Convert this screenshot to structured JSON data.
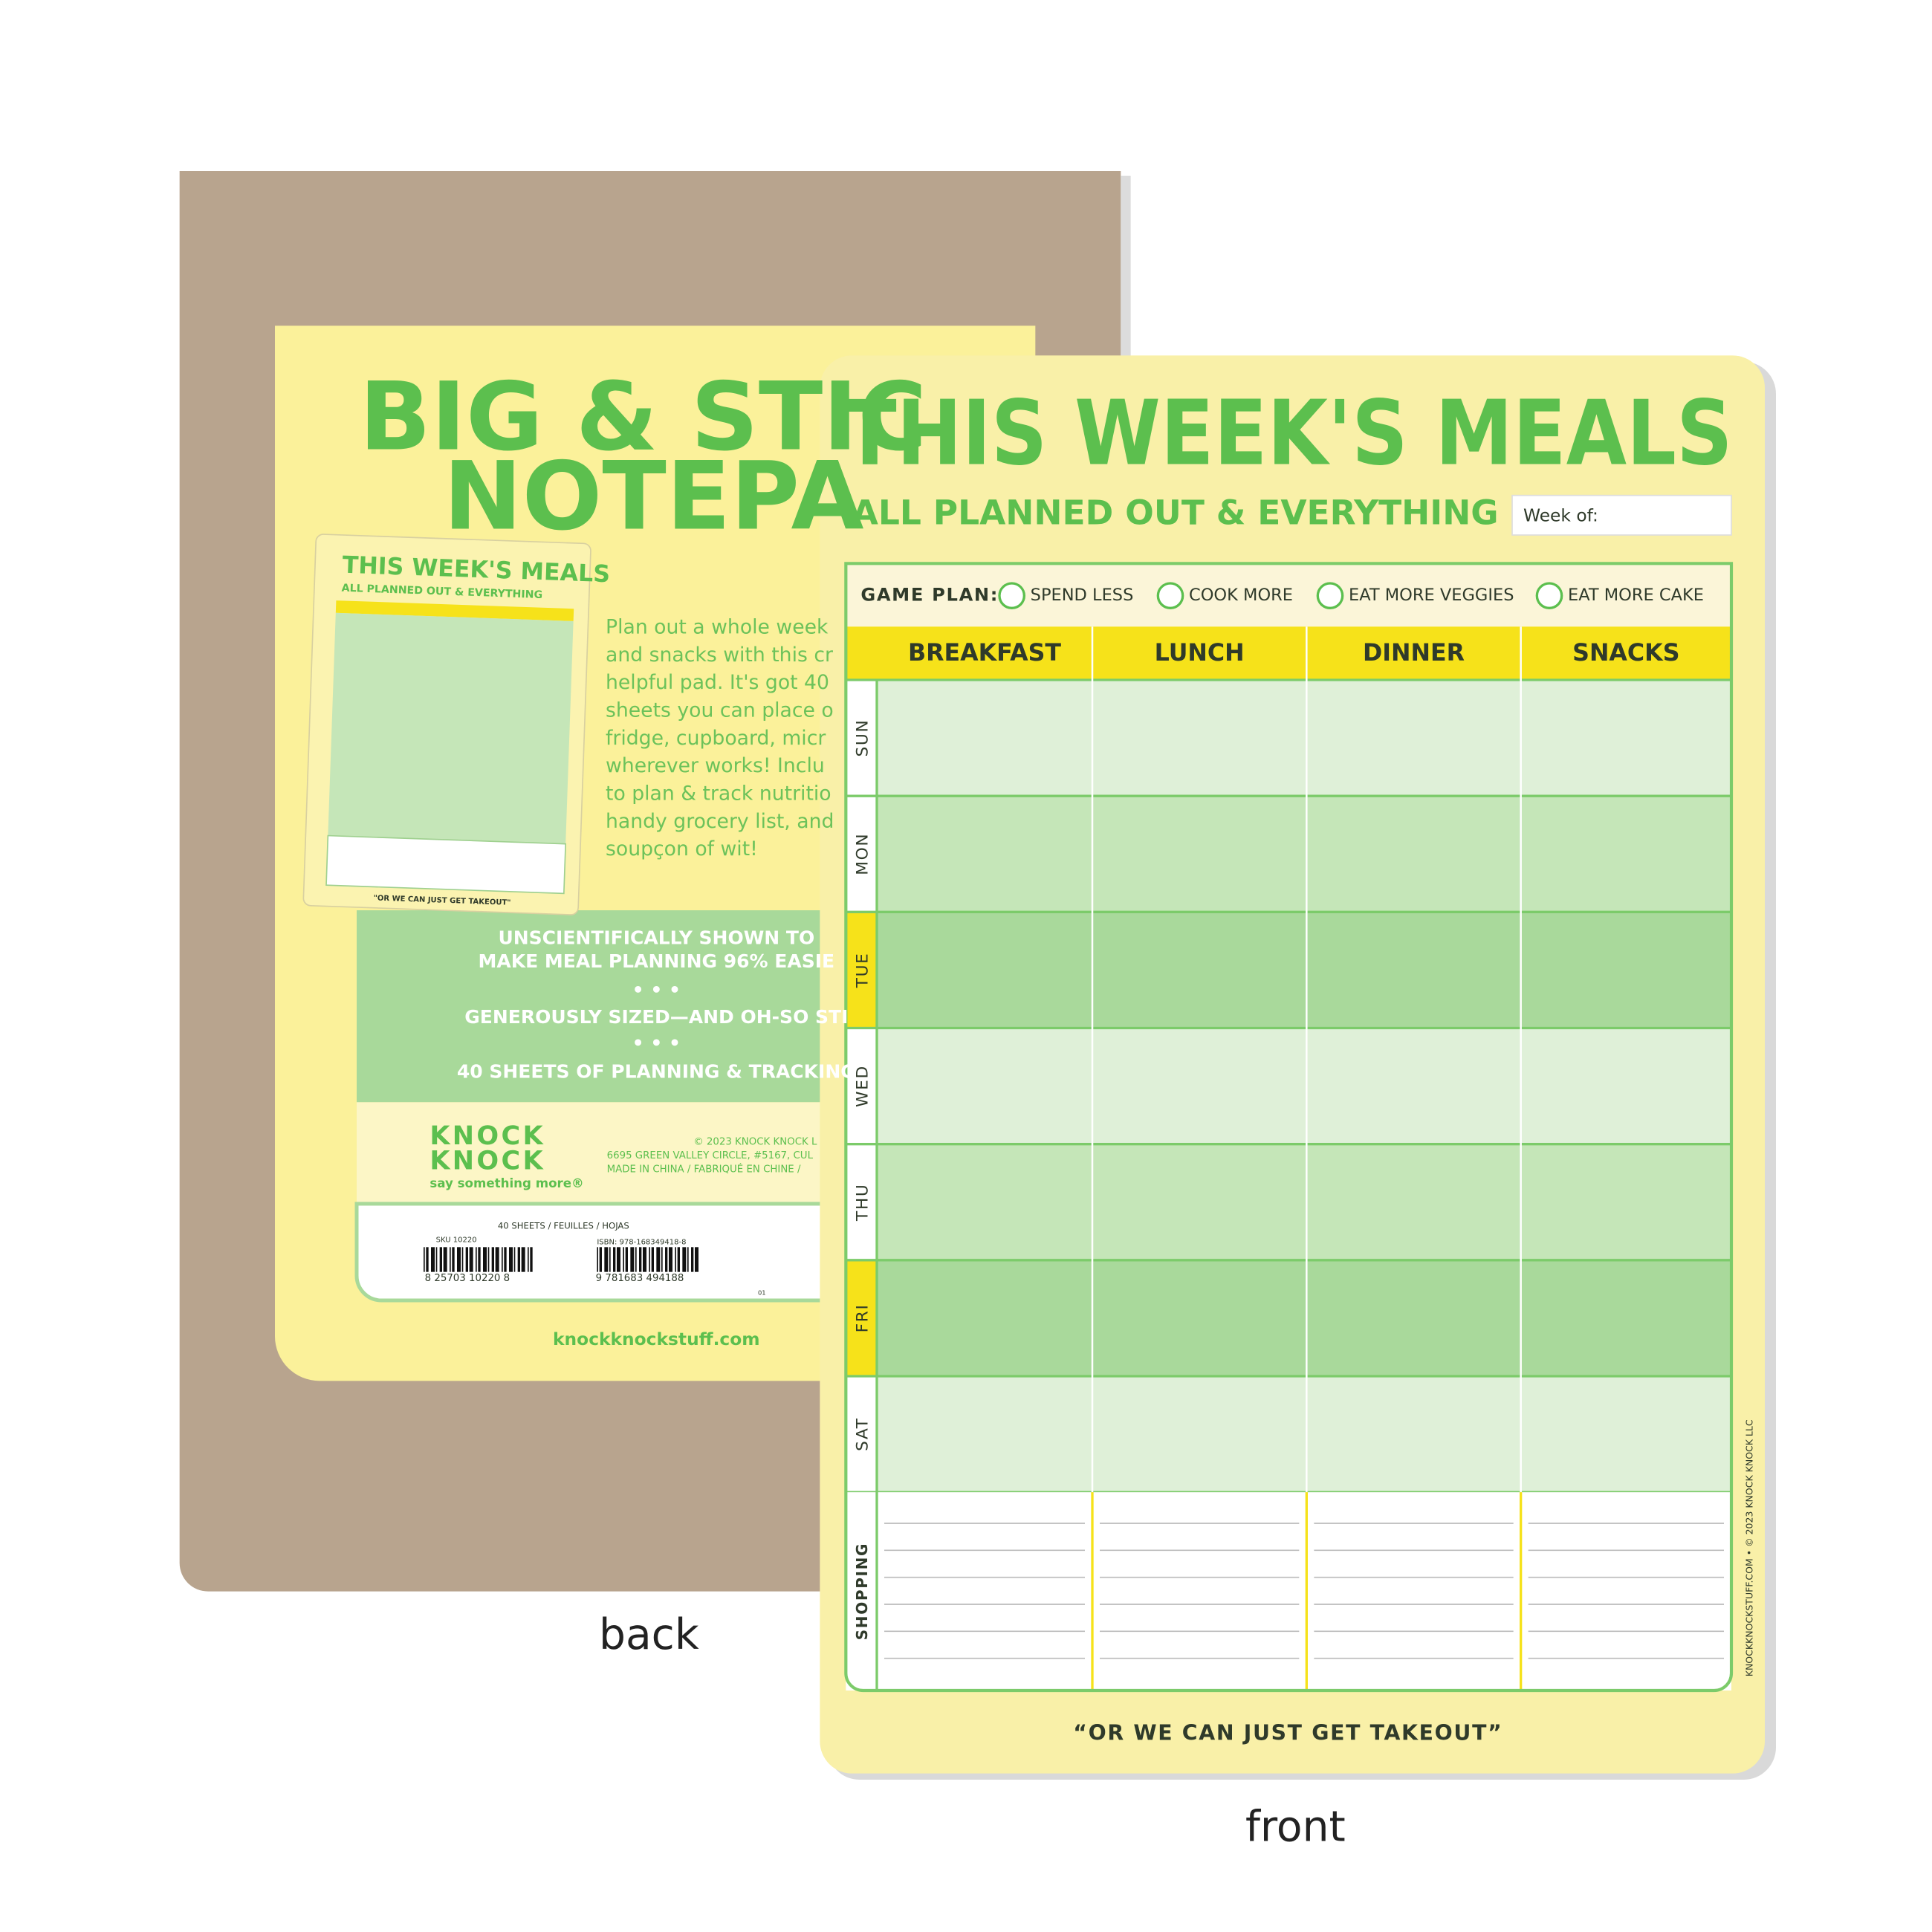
{
  "back": {
    "title_lines": [
      "BIG & STIC",
      "NOTEPA"
    ],
    "mini_title": "THIS WEEK'S MEALS",
    "mini_subtitle": "ALL PLANNED OUT & EVERYTHING",
    "mini_footer": "\"OR WE CAN JUST GET TAKEOUT\"",
    "description_lines": [
      "Plan out a whole week",
      "and snacks with this cr",
      "helpful pad. It's got 40",
      "sheets you can place o",
      "fridge, cupboard, micr",
      "wherever works! Inclu",
      "to plan & track nutritio",
      "handy grocery list, and",
      "soupçon of wit!"
    ],
    "features": [
      "UNSCIENTIFICALLY SHOWN TO",
      "MAKE MEAL PLANNING 96% EASIE",
      "• • •",
      "GENEROUSLY SIZED—AND OH-SO STI",
      "• • •",
      "40 SHEETS OF PLANNING & TRACKING"
    ],
    "brand_lines": [
      "KNOCK",
      "KNOCK"
    ],
    "tagline": "say something more®",
    "legal_lines": [
      "© 2023 KNOCK KNOCK L",
      "6695 GREEN VALLEY CIRCLE, #5167, CUL",
      "MADE IN CHINA / FABRIQUÉ EN CHINE /"
    ],
    "sheets": "40 SHEETS / FEUILLES / HOJAS",
    "sku": "SKU 10220",
    "isbn": "ISBN: 978-168349418-8",
    "barcode1": "8  25703  10220  8",
    "barcode2": "9 781683 494188",
    "code": "01",
    "website": "knockknockstuff.com",
    "label": "back"
  },
  "front": {
    "title": "THIS WEEK'S MEALS",
    "subtitle": "ALL PLANNED OUT & EVERYTHING",
    "week_of": "Week of:",
    "game_plan": "GAME PLAN:",
    "options": [
      "SPEND LESS",
      "COOK MORE",
      "EAT MORE VEGGIES",
      "EAT MORE CAKE"
    ],
    "columns": [
      "BREAKFAST",
      "LUNCH",
      "DINNER",
      "SNACKS"
    ],
    "days": [
      "SUN",
      "MON",
      "TUE",
      "WED",
      "THU",
      "FRI",
      "SAT"
    ],
    "shopping": "SHOPPING",
    "footer": "“OR WE CAN JUST GET TAKEOUT”",
    "side_text": "KNOCKKNOCKSTUFF.COM • © 2023 KNOCK KNOCK LLC",
    "label": "front"
  }
}
